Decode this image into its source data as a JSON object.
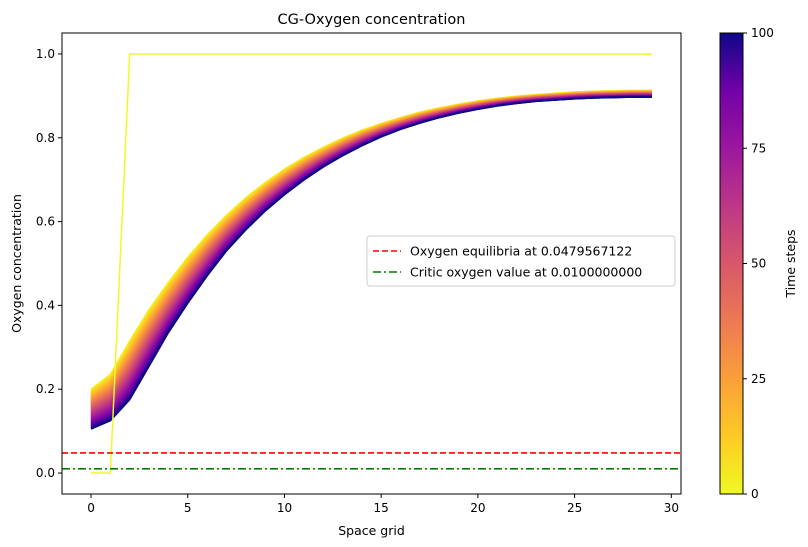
{
  "chart_data": {
    "type": "line",
    "title": "CG-Oxygen concentration",
    "xlabel": "Space grid",
    "ylabel": "Oxygen concentration",
    "xlim": [
      -1.5,
      30.5
    ],
    "ylim": [
      -0.05,
      1.05
    ],
    "xticks": [
      0,
      5,
      10,
      15,
      20,
      25,
      30
    ],
    "yticks": [
      0.0,
      0.2,
      0.4,
      0.6,
      0.8,
      1.0
    ],
    "grid": false,
    "legend_position": "center-right",
    "colormap": "plasma",
    "colorbar": {
      "label": "Time steps",
      "range": [
        0,
        100
      ],
      "ticks": [
        0,
        25,
        50,
        75,
        100
      ]
    },
    "series": [
      {
        "name": "",
        "time_step": 0,
        "color": "#f0f921",
        "x": [
          0,
          1,
          2,
          3,
          4,
          5,
          6,
          7,
          8,
          9,
          10,
          11,
          12,
          13,
          14,
          15,
          16,
          17,
          18,
          19,
          20,
          21,
          22,
          23,
          24,
          25,
          26,
          27,
          28,
          29
        ],
        "y": [
          0.0,
          0.0,
          1.0,
          1.0,
          1.0,
          1.0,
          1.0,
          1.0,
          1.0,
          1.0,
          1.0,
          1.0,
          1.0,
          1.0,
          1.0,
          1.0,
          1.0,
          1.0,
          1.0,
          1.0,
          1.0,
          1.0,
          1.0,
          1.0,
          1.0,
          1.0,
          1.0,
          1.0,
          1.0,
          1.0
        ]
      },
      {
        "name": "",
        "time_step": 1,
        "x": [
          0,
          1,
          2,
          3,
          4,
          5,
          6,
          7,
          8,
          9,
          10,
          11,
          12,
          13,
          14,
          15,
          16,
          17,
          18,
          19,
          20,
          21,
          22,
          23,
          24,
          25,
          26,
          27,
          28,
          29
        ],
        "y": [
          0.2,
          0.235,
          0.315,
          0.39,
          0.455,
          0.515,
          0.568,
          0.615,
          0.657,
          0.693,
          0.725,
          0.753,
          0.777,
          0.799,
          0.818,
          0.834,
          0.848,
          0.861,
          0.871,
          0.88,
          0.888,
          0.894,
          0.899,
          0.903,
          0.906,
          0.909,
          0.911,
          0.912,
          0.913,
          0.913
        ]
      },
      {
        "name": "",
        "time_step": 100,
        "x": [
          0,
          1,
          2,
          3,
          4,
          5,
          6,
          7,
          8,
          9,
          10,
          11,
          12,
          13,
          14,
          15,
          16,
          17,
          18,
          19,
          20,
          21,
          22,
          23,
          24,
          25,
          26,
          27,
          28,
          29
        ],
        "y": [
          0.105,
          0.125,
          0.175,
          0.255,
          0.335,
          0.405,
          0.47,
          0.53,
          0.58,
          0.625,
          0.664,
          0.699,
          0.73,
          0.757,
          0.781,
          0.802,
          0.82,
          0.835,
          0.848,
          0.859,
          0.868,
          0.876,
          0.882,
          0.887,
          0.89,
          0.893,
          0.895,
          0.896,
          0.897,
          0.897
        ]
      }
    ],
    "reference_lines": [
      {
        "label": "Oxygen equilibria at 0.0479567122",
        "y": 0.0479567122,
        "color": "#ff0000",
        "style": "dashed"
      },
      {
        "label": "Critic oxygen value at 0.0100000000",
        "y": 0.01,
        "color": "#008000",
        "style": "dashdot"
      }
    ]
  }
}
